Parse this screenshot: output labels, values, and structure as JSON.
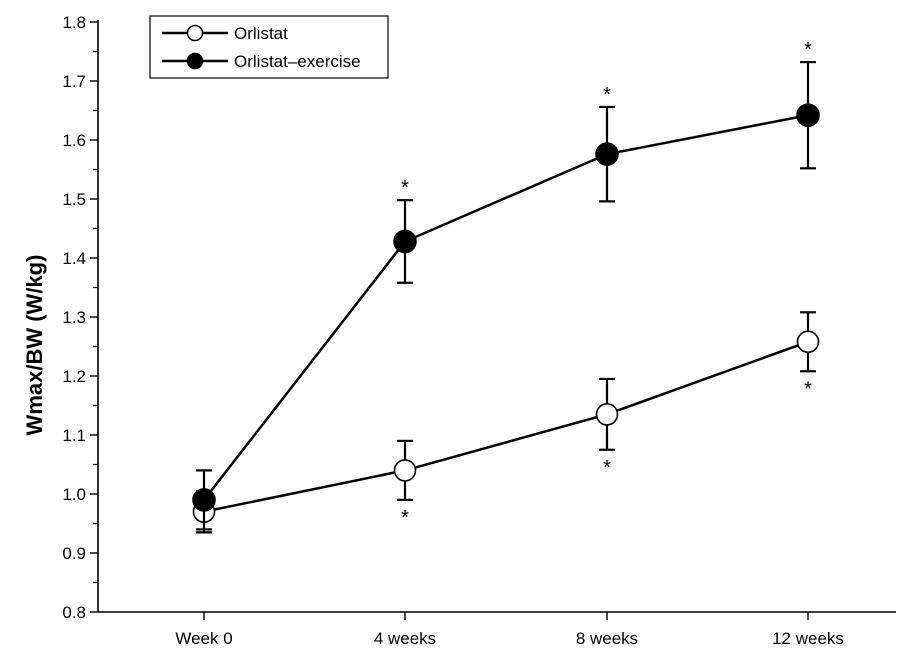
{
  "chart_data": {
    "type": "line",
    "title": "",
    "xlabel": "",
    "ylabel": "Wmax/BW (W/kg)",
    "categories": [
      "Week 0",
      "4 weeks",
      "8 weeks",
      "12 weeks"
    ],
    "ylim": [
      0.8,
      1.8
    ],
    "yticks": [
      "0.8",
      "0.9",
      "1.0",
      "1.1",
      "1.2",
      "1.3",
      "1.4",
      "1.5",
      "1.6",
      "1.7",
      "1.8"
    ],
    "grid": false,
    "legend_position": "top-left",
    "significance_marker": "*",
    "series": [
      {
        "name": "Orlistat",
        "marker": "open-circle",
        "color": "#000000",
        "values": [
          0.97,
          1.04,
          1.135,
          1.258
        ],
        "error": [
          0.035,
          0.05,
          0.06,
          0.05
        ],
        "significant": [
          false,
          true,
          true,
          true
        ],
        "marker_side": "below"
      },
      {
        "name": "Orlistat–exercise",
        "marker": "filled-circle",
        "color": "#000000",
        "values": [
          0.99,
          1.428,
          1.576,
          1.642
        ],
        "error": [
          0.05,
          0.07,
          0.08,
          0.09
        ],
        "significant": [
          false,
          true,
          true,
          true
        ],
        "marker_side": "above"
      }
    ]
  }
}
